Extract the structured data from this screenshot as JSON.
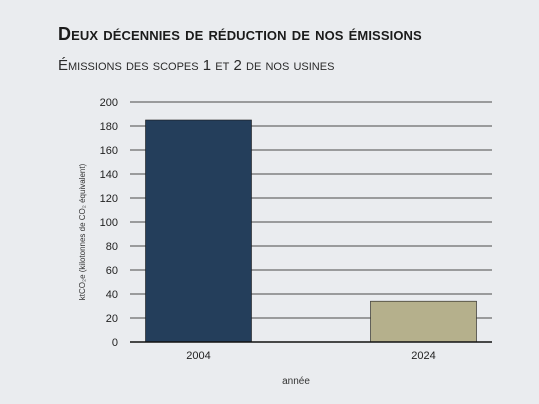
{
  "chart_data": {
    "type": "bar",
    "title": "Deux décennies de réduction de nos émissions",
    "subtitle": "Émissions des scopes 1 et 2 de nos usines",
    "categories": [
      "2004",
      "2024"
    ],
    "values": [
      185,
      34
    ],
    "colors": [
      "#243e5b",
      "#b5b08c"
    ],
    "xlabel": "année",
    "ylabel": "ktCO₂e (kilotonnes de CO₂ équivalent)",
    "ylim": [
      0,
      200
    ],
    "yticks": [
      "0",
      "20",
      "40",
      "60",
      "80",
      "100",
      "120",
      "140",
      "160",
      "180",
      "200"
    ],
    "grid": true,
    "legend": "none"
  }
}
